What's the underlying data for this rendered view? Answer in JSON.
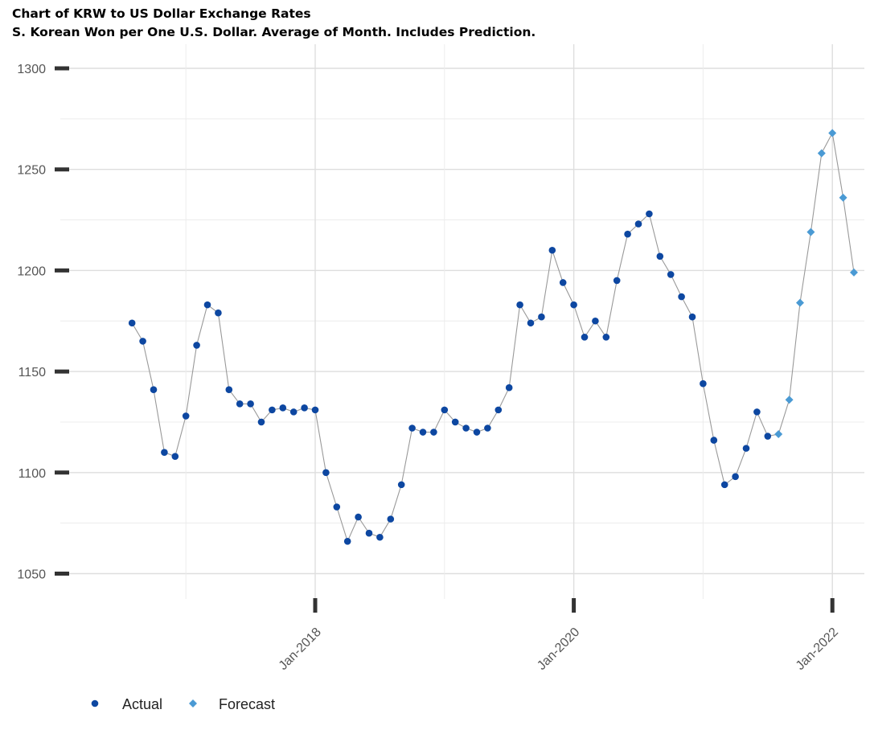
{
  "header": {
    "title": "Chart of KRW to US Dollar Exchange Rates",
    "subtitle": "S. Korean Won per One U.S. Dollar.  Average of Month.  Includes Prediction."
  },
  "colors": {
    "actual": "#0d47a1",
    "forecast": "#4a9ad4",
    "line": "#999999",
    "grid": "#dedede",
    "tick": "#333333"
  },
  "chart_data": {
    "type": "line",
    "title": "Chart of KRW to US Dollar Exchange Rates",
    "subtitle": "S. Korean Won per One U.S. Dollar.  Average of Month.  Includes Prediction.",
    "xlabel": "",
    "ylabel": "",
    "ylim": [
      1040,
      1310
    ],
    "xlim": [
      "2016-05",
      "2022-02"
    ],
    "y_ticks": [
      1050,
      1100,
      1150,
      1200,
      1250,
      1300
    ],
    "x_ticks": [
      "2018-01",
      "2020-01",
      "2022-01"
    ],
    "x_tick_labels": [
      "Jan-2018",
      "Jan-2020",
      "Jan-2022"
    ],
    "grid": true,
    "legend_position": "bottom-left",
    "series": [
      {
        "name": "Actual",
        "marker": "circle",
        "points": [
          {
            "x": "2016-08",
            "y": 1174
          },
          {
            "x": "2016-09",
            "y": 1165
          },
          {
            "x": "2016-10",
            "y": 1141
          },
          {
            "x": "2016-11",
            "y": 1110
          },
          {
            "x": "2016-12",
            "y": 1108
          },
          {
            "x": "2017-01",
            "y": 1128
          },
          {
            "x": "2017-02",
            "y": 1163
          },
          {
            "x": "2017-03",
            "y": 1183
          },
          {
            "x": "2017-04",
            "y": 1179
          },
          {
            "x": "2017-05",
            "y": 1141
          },
          {
            "x": "2017-06",
            "y": 1134
          },
          {
            "x": "2017-07",
            "y": 1134
          },
          {
            "x": "2017-08",
            "y": 1125
          },
          {
            "x": "2017-09",
            "y": 1131
          },
          {
            "x": "2017-10",
            "y": 1132
          },
          {
            "x": "2017-11",
            "y": 1130
          },
          {
            "x": "2017-12",
            "y": 1132
          },
          {
            "x": "2018-01",
            "y": 1131
          },
          {
            "x": "2018-02",
            "y": 1100
          },
          {
            "x": "2018-03",
            "y": 1083
          },
          {
            "x": "2018-04",
            "y": 1066
          },
          {
            "x": "2018-05",
            "y": 1078
          },
          {
            "x": "2018-06",
            "y": 1070
          },
          {
            "x": "2018-07",
            "y": 1068
          },
          {
            "x": "2018-08",
            "y": 1077
          },
          {
            "x": "2018-09",
            "y": 1094
          },
          {
            "x": "2018-10",
            "y": 1122
          },
          {
            "x": "2018-11",
            "y": 1120
          },
          {
            "x": "2018-12",
            "y": 1120
          },
          {
            "x": "2019-01",
            "y": 1131
          },
          {
            "x": "2019-02",
            "y": 1125
          },
          {
            "x": "2019-03",
            "y": 1122
          },
          {
            "x": "2019-04",
            "y": 1120
          },
          {
            "x": "2019-05",
            "y": 1122
          },
          {
            "x": "2019-06",
            "y": 1131
          },
          {
            "x": "2019-07",
            "y": 1142
          },
          {
            "x": "2019-08",
            "y": 1183
          },
          {
            "x": "2019-09",
            "y": 1174
          },
          {
            "x": "2019-10",
            "y": 1177
          },
          {
            "x": "2019-11",
            "y": 1210
          },
          {
            "x": "2019-12",
            "y": 1194
          },
          {
            "x": "2020-01",
            "y": 1183
          },
          {
            "x": "2020-02",
            "y": 1167
          },
          {
            "x": "2020-03",
            "y": 1175
          },
          {
            "x": "2020-04",
            "y": 1167
          },
          {
            "x": "2020-05",
            "y": 1195
          },
          {
            "x": "2020-06",
            "y": 1218
          },
          {
            "x": "2020-07",
            "y": 1223
          },
          {
            "x": "2020-08",
            "y": 1228
          },
          {
            "x": "2020-09",
            "y": 1207
          },
          {
            "x": "2020-10",
            "y": 1198
          },
          {
            "x": "2020-11",
            "y": 1187
          },
          {
            "x": "2020-12",
            "y": 1177
          },
          {
            "x": "2021-01",
            "y": 1144
          },
          {
            "x": "2021-02",
            "y": 1116
          },
          {
            "x": "2021-03",
            "y": 1094
          },
          {
            "x": "2021-04",
            "y": 1098
          },
          {
            "x": "2021-05",
            "y": 1112
          },
          {
            "x": "2021-06",
            "y": 1130
          },
          {
            "x": "2021-07",
            "y": 1118
          }
        ]
      },
      {
        "name": "Forecast",
        "marker": "diamond",
        "points": [
          {
            "x": "2021-08",
            "y": 1119
          },
          {
            "x": "2021-09",
            "y": 1136
          },
          {
            "x": "2021-10",
            "y": 1184
          },
          {
            "x": "2021-11",
            "y": 1219
          },
          {
            "x": "2021-12",
            "y": 1258
          },
          {
            "x": "2022-01",
            "y": 1268
          },
          {
            "x": "2022-02",
            "y": 1236
          },
          {
            "x": "2022-03",
            "y": 1199
          }
        ]
      }
    ]
  }
}
